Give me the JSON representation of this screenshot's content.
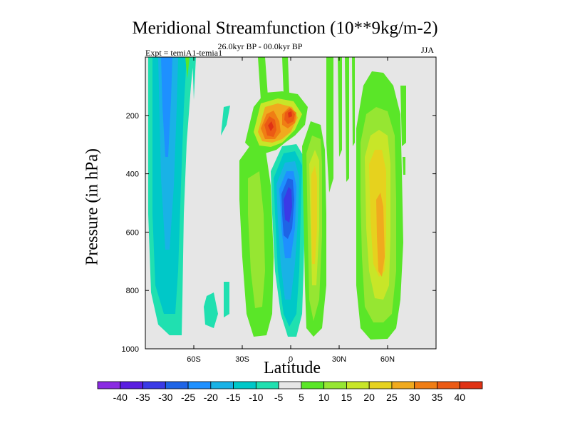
{
  "chart_data": {
    "type": "heatmap",
    "title": "Meridional Streamfunction (10**9kg/m-2)",
    "subtitle_left": "Expt = temiA1-temia1",
    "subtitle_center": "26.0kyr BP - 00.0kyr BP",
    "subtitle_right": "JJA",
    "xlabel": "Latitude",
    "ylabel": "Pressure (in hPa)",
    "xlim": [
      -90,
      90
    ],
    "ylim": [
      1000,
      0
    ],
    "xticks": [
      {
        "value": -60,
        "label": "60S"
      },
      {
        "value": -30,
        "label": "30S"
      },
      {
        "value": 0,
        "label": "0"
      },
      {
        "value": 30,
        "label": "30N"
      },
      {
        "value": 60,
        "label": "60N"
      }
    ],
    "yticks": [
      {
        "value": 200,
        "label": "200"
      },
      {
        "value": 400,
        "label": "400"
      },
      {
        "value": 600,
        "label": "600"
      },
      {
        "value": 800,
        "label": "800"
      },
      {
        "value": 1000,
        "label": "1000"
      }
    ],
    "colorbar": {
      "levels": [
        -40,
        -35,
        -30,
        -25,
        -20,
        -15,
        -10,
        -5,
        5,
        10,
        15,
        20,
        25,
        30,
        35,
        40
      ],
      "labels": [
        "-40",
        "-35",
        "-30",
        "-25",
        "-20",
        "-15",
        "-10",
        "-5",
        "5",
        "10",
        "15",
        "20",
        "25",
        "30",
        "35",
        "40"
      ],
      "colors": [
        "#8a2be2",
        "#5a1ee0",
        "#3a3ae6",
        "#1e64e6",
        "#1e90ff",
        "#19b2e6",
        "#00c8c8",
        "#20e0b0",
        "#e6e6e6",
        "#5ae628",
        "#96e632",
        "#c8e628",
        "#e6d21e",
        "#f0aa1e",
        "#f07d14",
        "#eb5a14",
        "#e03214"
      ]
    },
    "features": [
      {
        "name": "sh-high-latitude-cell",
        "level": -10,
        "lat": [
          -82,
          -58
        ],
        "p": [
          0,
          960
        ]
      },
      {
        "name": "sh-high-latitude-core",
        "level": -15,
        "lat": [
          -77,
          -66
        ],
        "p": [
          0,
          770
        ]
      },
      {
        "name": "sh-midlat-cell",
        "level": -10,
        "lat": [
          -60,
          -50
        ],
        "p": [
          870,
          950
        ]
      },
      {
        "name": "sh-midlat-positive",
        "level": 5,
        "lat": [
          -33,
          -21
        ],
        "p": [
          320,
          960
        ]
      },
      {
        "name": "upper-positive-left",
        "level": 35,
        "lat": [
          -15,
          -8
        ],
        "p": [
          170,
          280
        ]
      },
      {
        "name": "upper-positive-right",
        "level": 35,
        "lat": [
          -3,
          4
        ],
        "p": [
          150,
          220
        ]
      },
      {
        "name": "tropical-negative-cell",
        "level": -35,
        "lat": [
          -5,
          0
        ],
        "p": [
          380,
          520
        ]
      },
      {
        "name": "nh-tropical-positive",
        "level": 20,
        "lat": [
          13,
          19
        ],
        "p": [
          240,
          860
        ]
      },
      {
        "name": "nh-midlat-positive",
        "level": 25,
        "lat": [
          50,
          57
        ],
        "p": [
          240,
          850
        ]
      }
    ]
  }
}
